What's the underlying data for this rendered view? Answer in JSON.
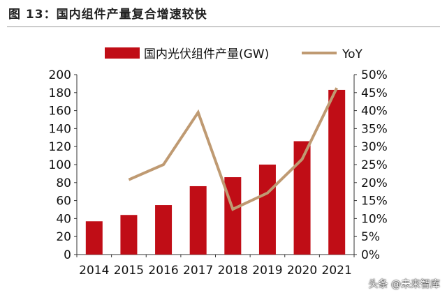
{
  "title": "图 13：国内组件产量复合增速较快",
  "watermark": "头条 @未来智库",
  "chart_data": {
    "type": "bar+line",
    "categories": [
      "2014",
      "2015",
      "2016",
      "2017",
      "2018",
      "2019",
      "2020",
      "2021"
    ],
    "series": [
      {
        "name": "国内光伏组件产量(GW)",
        "type": "bar",
        "axis": "left",
        "color": "#c00d16",
        "values": [
          37,
          44,
          55,
          76,
          86,
          100,
          126,
          183
        ]
      },
      {
        "name": "YoY",
        "type": "line",
        "axis": "right",
        "color": "#bf9a72",
        "values": [
          null,
          20.8,
          25.0,
          39.5,
          12.6,
          17.1,
          26.5,
          46.3
        ]
      }
    ],
    "ylim_left": [
      0,
      200
    ],
    "yticks_left": [
      "0",
      "20",
      "40",
      "60",
      "80",
      "100",
      "120",
      "140",
      "160",
      "180",
      "200"
    ],
    "ylim_right": [
      0,
      50
    ],
    "yticks_right": [
      "0%",
      "5%",
      "10%",
      "15%",
      "20%",
      "25%",
      "30%",
      "35%",
      "40%",
      "45%",
      "50%"
    ],
    "legend_placement": "top",
    "grid": false
  }
}
